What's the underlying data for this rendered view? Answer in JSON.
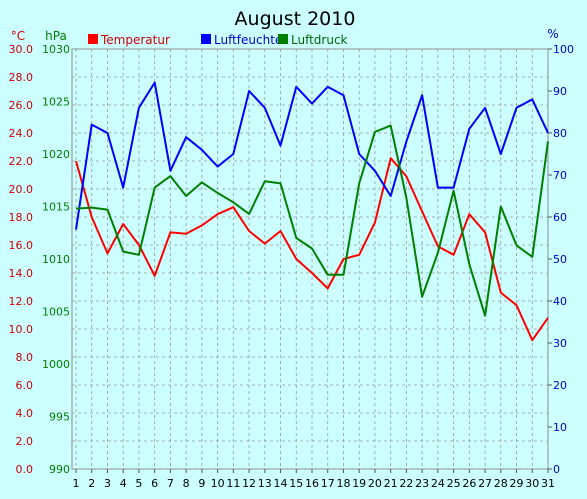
{
  "chart_data": {
    "type": "line",
    "title": "August 2010",
    "x": [
      1,
      2,
      3,
      4,
      5,
      6,
      7,
      8,
      9,
      10,
      11,
      12,
      13,
      14,
      15,
      16,
      17,
      18,
      19,
      20,
      21,
      22,
      23,
      24,
      25,
      26,
      27,
      28,
      29,
      30,
      31
    ],
    "axes": {
      "temp": {
        "unit": "°C",
        "min": 0,
        "max": 30,
        "ticks": [
          "0.0",
          "2.0",
          "4.0",
          "6.0",
          "8.0",
          "10.0",
          "12.0",
          "14.0",
          "16.0",
          "18.0",
          "20.0",
          "22.0",
          "24.0",
          "26.0",
          "28.0",
          "30.0"
        ]
      },
      "pressure": {
        "unit": "hPa",
        "min": 990,
        "max": 1030,
        "ticks": [
          "990",
          "995",
          "1000",
          "1005",
          "1010",
          "1015",
          "1020",
          "1025",
          "1030"
        ]
      },
      "humidity": {
        "unit": "%",
        "min": 0,
        "max": 100,
        "ticks": [
          "0",
          "10",
          "20",
          "30",
          "40",
          "50",
          "60",
          "70",
          "80",
          "90",
          "100"
        ]
      }
    },
    "series": [
      {
        "name": "Temperatur",
        "axis": "temp",
        "color": "#ff0000",
        "values": [
          22.0,
          18.0,
          15.4,
          17.5,
          16.0,
          13.8,
          16.9,
          16.8,
          17.4,
          18.2,
          18.7,
          17.0,
          16.1,
          17.0,
          15.0,
          14.0,
          12.9,
          15.0,
          15.3,
          17.6,
          22.2,
          20.9,
          18.4,
          15.9,
          15.3,
          18.2,
          16.9,
          12.6,
          11.7,
          9.2,
          10.8
        ]
      },
      {
        "name": "Luftfeuchte",
        "axis": "humidity",
        "color": "#0000ff",
        "values": [
          57,
          82,
          80,
          67,
          86,
          92,
          71,
          79,
          76,
          72,
          75,
          90,
          86,
          77,
          91,
          87,
          91,
          89,
          75,
          71,
          65,
          78,
          89,
          67,
          67,
          81,
          86,
          75,
          86,
          88,
          80
        ]
      },
      {
        "name": "Luftdruck",
        "axis": "pressure",
        "color": "#008000",
        "values": [
          1014.8,
          1014.9,
          1014.7,
          1010.7,
          1010.4,
          1016.8,
          1017.9,
          1016.0,
          1017.3,
          1016.3,
          1015.4,
          1014.3,
          1017.4,
          1017.2,
          1012.0,
          1011.0,
          1008.5,
          1008.5,
          1017.2,
          1022.1,
          1022.7,
          1015.8,
          1006.4,
          1010.6,
          1016.5,
          1009.5,
          1004.6,
          1015.0,
          1011.3,
          1010.2,
          1021.2
        ]
      }
    ],
    "legend_position": "top",
    "grid": true
  }
}
